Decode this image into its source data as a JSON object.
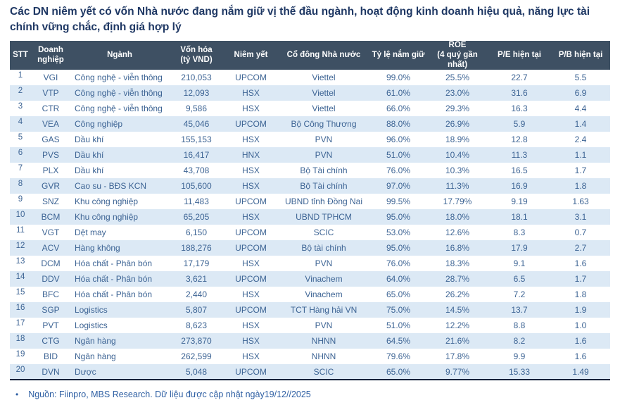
{
  "title": "Các DN niêm yết có vốn Nhà nước đang nắm giữ vị thế đầu ngành, hoạt động kinh doanh hiệu quả, năng lực tài chính vững chắc, định giá hợp lý",
  "table": {
    "headers": [
      "STT",
      "Doanh\nnghiệp",
      "Ngành",
      "Vốn hóa\n(tỷ VND)",
      "Niêm yết",
      "Cổ đông Nhà nước",
      "Tỷ lệ nắm giữ",
      "ROE\n(4 quý gần nhất)",
      "P/E hiện tại",
      "P/B hiện tại"
    ],
    "rows": [
      [
        "1",
        "VGI",
        "Công nghệ - viễn thông",
        "210,053",
        "UPCOM",
        "Viettel",
        "99.0%",
        "25.5%",
        "22.7",
        "5.5"
      ],
      [
        "2",
        "VTP",
        "Công nghệ - viễn thông",
        "12,093",
        "HSX",
        "Viettel",
        "61.0%",
        "23.0%",
        "31.6",
        "6.9"
      ],
      [
        "3",
        "CTR",
        "Công nghệ - viễn thông",
        "9,586",
        "HSX",
        "Viettel",
        "66.0%",
        "29.3%",
        "16.3",
        "4.4"
      ],
      [
        "4",
        "VEA",
        "Công nghiệp",
        "45,046",
        "UPCOM",
        "Bộ Công Thương",
        "88.0%",
        "26.9%",
        "5.9",
        "1.4"
      ],
      [
        "5",
        "GAS",
        "Dầu khí",
        "155,153",
        "HSX",
        "PVN",
        "96.0%",
        "18.9%",
        "12.8",
        "2.4"
      ],
      [
        "6",
        "PVS",
        "Dầu khí",
        "16,417",
        "HNX",
        "PVN",
        "51.0%",
        "10.4%",
        "11.3",
        "1.1"
      ],
      [
        "7",
        "PLX",
        "Dầu khí",
        "43,708",
        "HSX",
        "Bộ Tài chính",
        "76.0%",
        "10.3%",
        "16.5",
        "1.7"
      ],
      [
        "8",
        "GVR",
        "Cao su - BĐS KCN",
        "105,600",
        "HSX",
        "Bộ Tài chính",
        "97.0%",
        "11.3%",
        "16.9",
        "1.8"
      ],
      [
        "9",
        "SNZ",
        "Khu công nghiệp",
        "11,483",
        "UPCOM",
        "UBND tỉnh Đồng Nai",
        "99.5%",
        "17.79%",
        "9.19",
        "1.63"
      ],
      [
        "10",
        "BCM",
        "Khu công nghiệp",
        "65,205",
        "HSX",
        "UBND TPHCM",
        "95.0%",
        "18.0%",
        "18.1",
        "3.1"
      ],
      [
        "11",
        "VGT",
        "Dệt may",
        "6,150",
        "UPCOM",
        "SCIC",
        "53.0%",
        "12.6%",
        "8.3",
        "0.7"
      ],
      [
        "12",
        "ACV",
        "Hàng không",
        "188,276",
        "UPCOM",
        "Bộ tài chính",
        "95.0%",
        "16.8%",
        "17.9",
        "2.7"
      ],
      [
        "13",
        "DCM",
        "Hóa chất - Phân bón",
        "17,179",
        "HSX",
        "PVN",
        "76.0%",
        "18.3%",
        "9.1",
        "1.6"
      ],
      [
        "14",
        "DDV",
        "Hóa chất - Phân bón",
        "3,621",
        "UPCOM",
        "Vinachem",
        "64.0%",
        "28.7%",
        "6.5",
        "1.7"
      ],
      [
        "15",
        "BFC",
        "Hóa chất - Phân bón",
        "2,440",
        "HSX",
        "Vinachem",
        "65.0%",
        "26.2%",
        "7.2",
        "1.8"
      ],
      [
        "16",
        "SGP",
        "Logistics",
        "5,807",
        "UPCOM",
        "TCT Hàng hải VN",
        "75.0%",
        "14.5%",
        "13.7",
        "1.9"
      ],
      [
        "17",
        "PVT",
        "Logistics",
        "8,623",
        "HSX",
        "PVN",
        "51.0%",
        "12.2%",
        "8.8",
        "1.0"
      ],
      [
        "18",
        "CTG",
        "Ngân hàng",
        "273,870",
        "HSX",
        "NHNN",
        "64.5%",
        "21.6%",
        "8.2",
        "1.6"
      ],
      [
        "19",
        "BID",
        "Ngân hàng",
        "262,599",
        "HSX",
        "NHNN",
        "79.6%",
        "17.8%",
        "9.9",
        "1.6"
      ],
      [
        "20",
        "DVN",
        "Dược",
        "5,048",
        "UPCOM",
        "SCIC",
        "65.0%",
        "9.77%",
        "15.33",
        "1.49"
      ]
    ]
  },
  "footer": {
    "bullet": "•",
    "text": "Nguồn: Fiinpro, MBS Research. Dữ liệu được cập nhật ngày19/12//2025"
  },
  "colors": {
    "title_text": "#1F3864",
    "header_bg": "#3E5063",
    "header_text": "#FFFFFF",
    "body_text": "#3D6494",
    "row_stripe": "#DCE9F5",
    "table_bottom_border": "#13213A",
    "footer_text": "#2E5FA3"
  }
}
